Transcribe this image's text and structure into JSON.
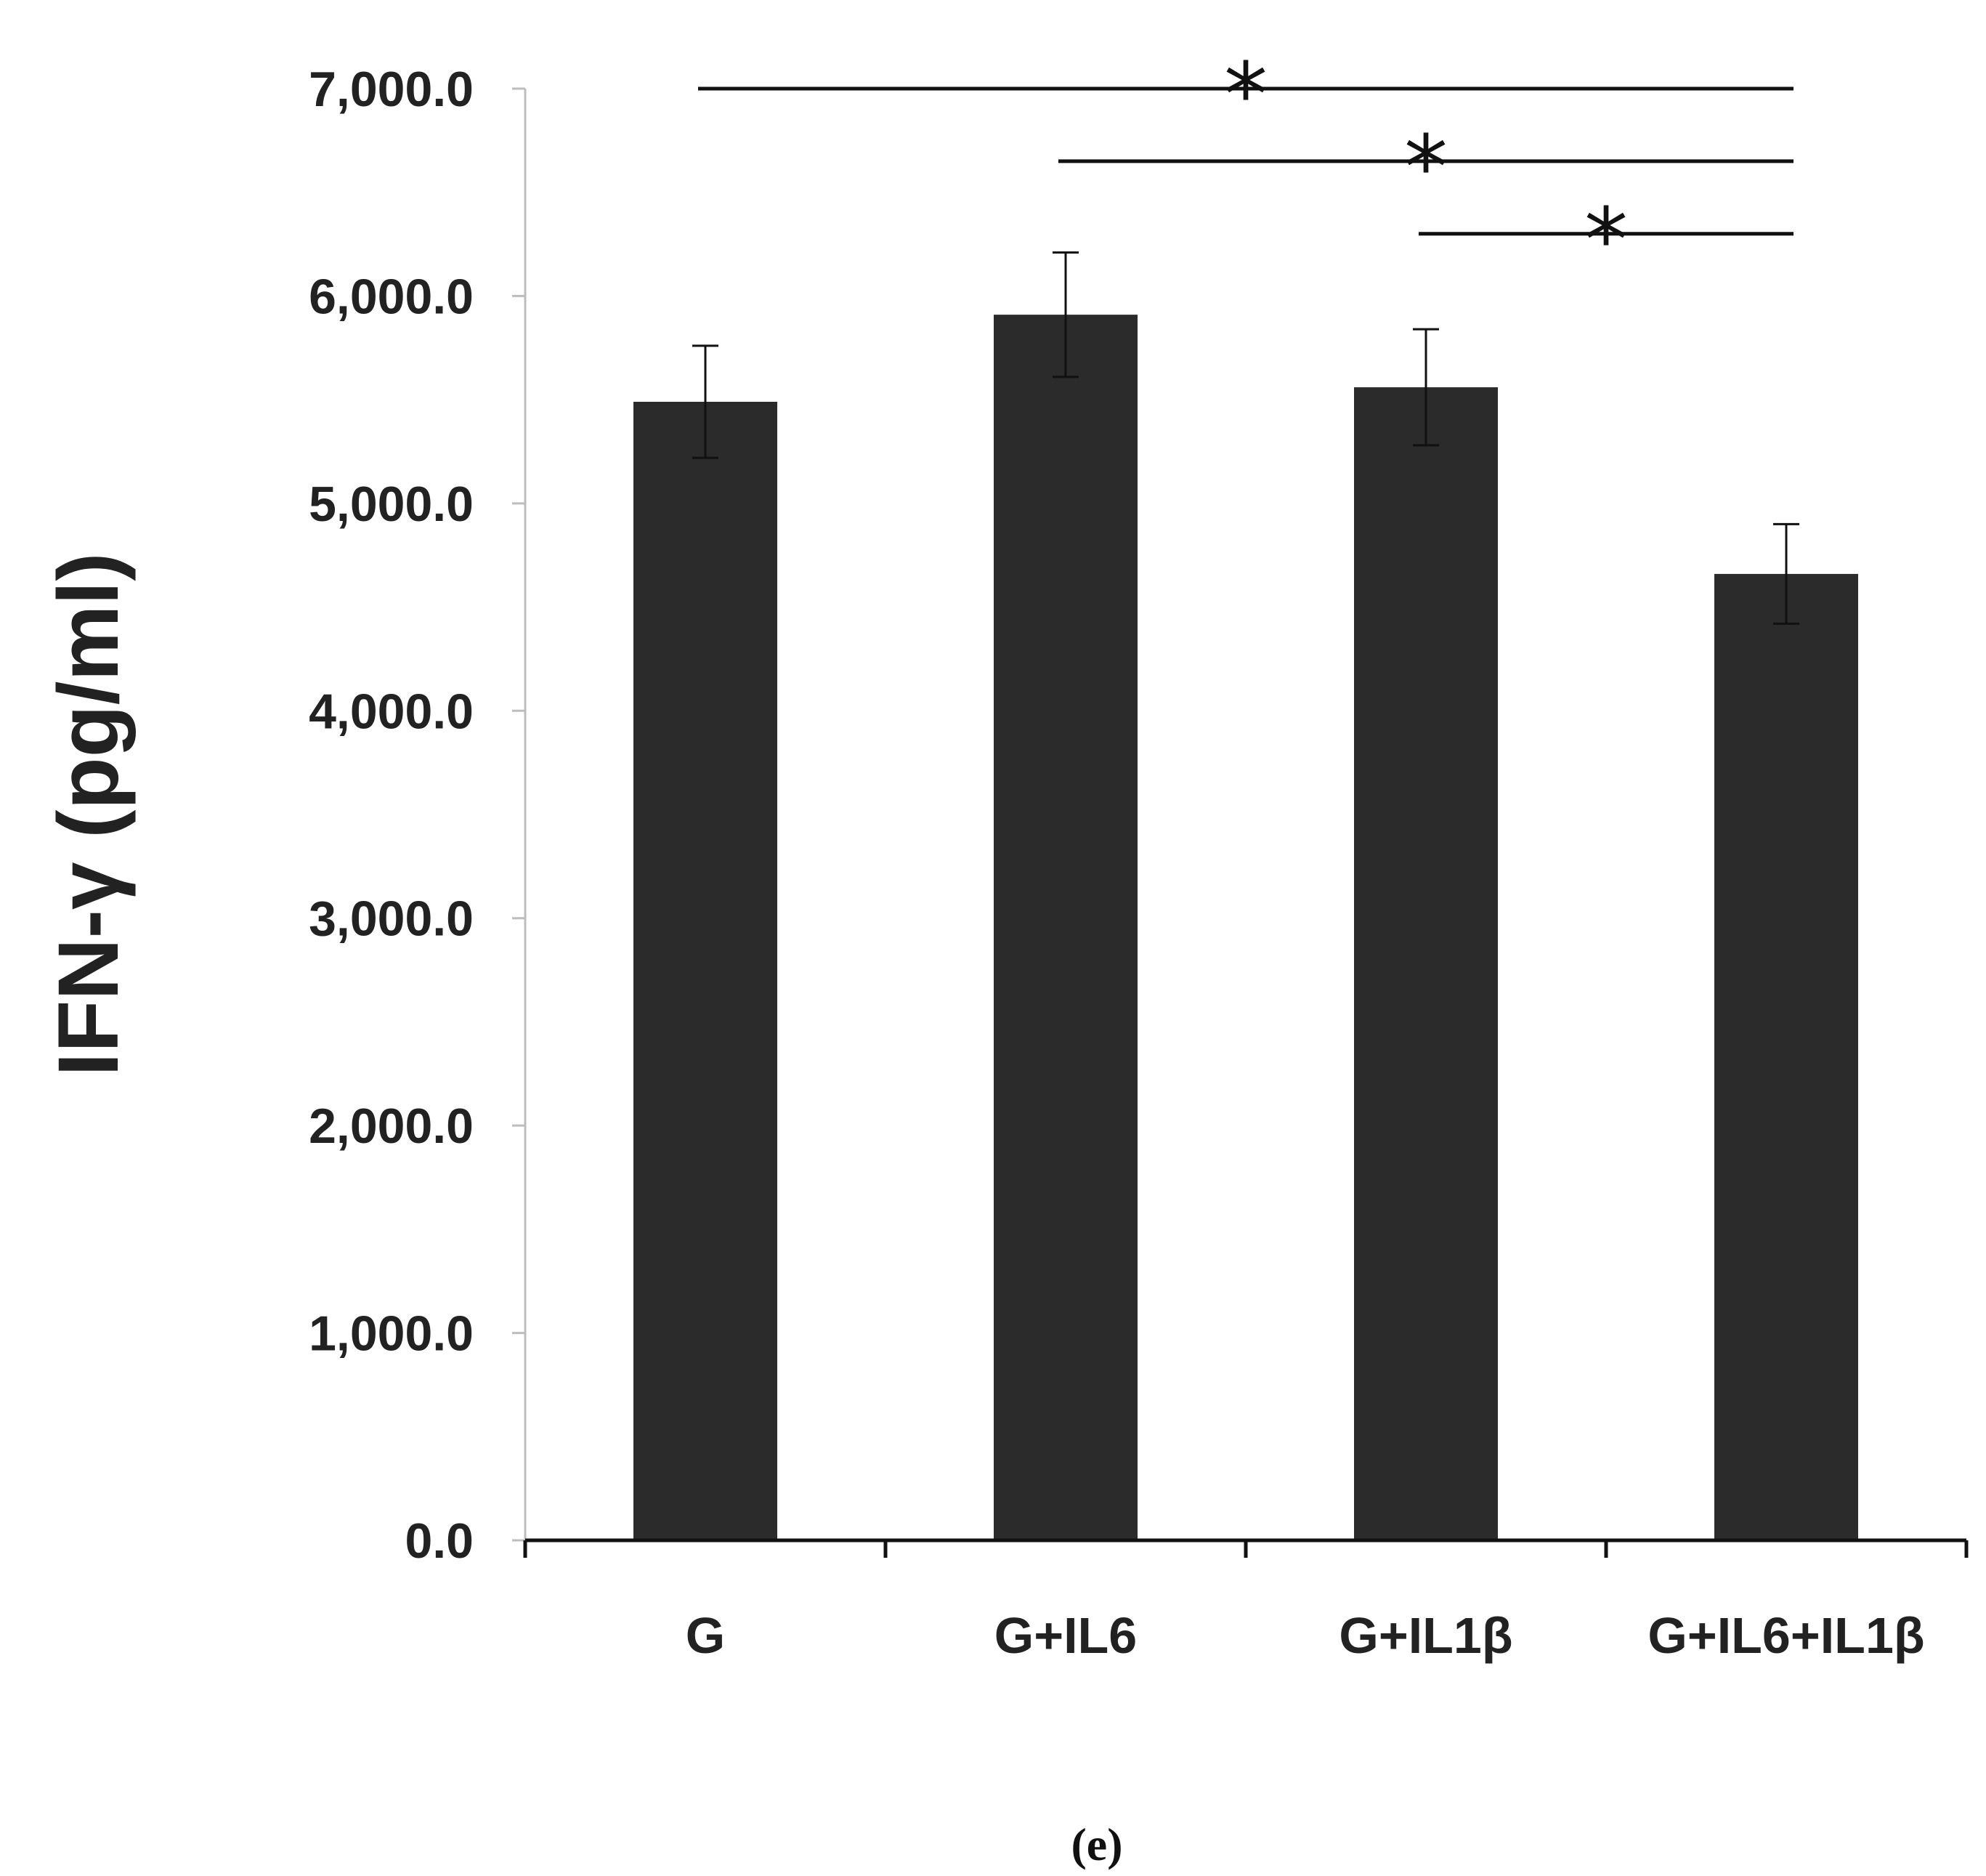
{
  "chart_data": {
    "type": "bar",
    "title": "",
    "xlabel": "",
    "ylabel": "IFN-γ (pg/ml)",
    "categories": [
      "G",
      "G+IL6",
      "G+IL1β",
      "G+IL6+IL1β"
    ],
    "values": [
      5490,
      5910,
      5560,
      4660
    ],
    "errors": [
      270,
      300,
      280,
      240
    ],
    "ylim": [
      0,
      7000
    ],
    "yticks": [
      "0.0",
      "1,000.0",
      "2,000.0",
      "3,000.0",
      "4,000.0",
      "5,000.0",
      "6,000.0",
      "7,000.0"
    ],
    "grid": false,
    "bar_color": "#2b2b2b",
    "significance": [
      {
        "from": 0,
        "to": 3,
        "level": 7000,
        "label": "*"
      },
      {
        "from": 1,
        "to": 3,
        "level": 6650,
        "label": "*"
      },
      {
        "from": 2,
        "to": 3,
        "level": 6300,
        "label": "*"
      }
    ],
    "panel_label": "(e)"
  }
}
